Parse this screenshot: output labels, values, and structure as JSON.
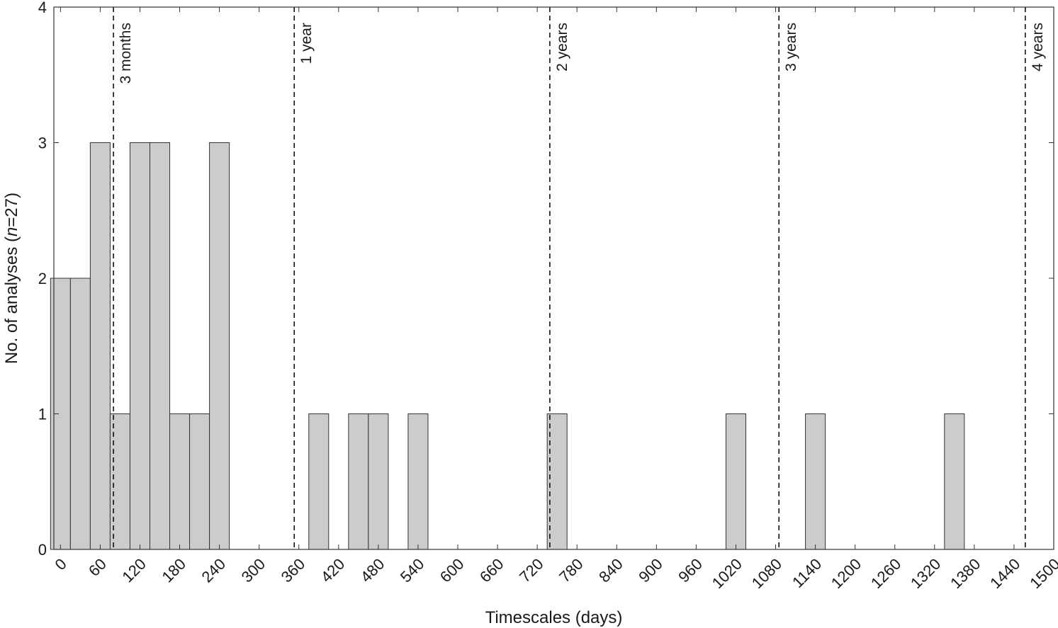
{
  "chart_data": {
    "type": "bar",
    "subtype": "histogram",
    "xlabel": "Timescales (days)",
    "ylabel": "No. of analyses (n=27)",
    "ylabel_parts": [
      "No. of analyses (",
      "n",
      "=27)"
    ],
    "xlim": [
      -10,
      1500
    ],
    "ylim": [
      0,
      4
    ],
    "grid": false,
    "bin_width": 30,
    "bar_color": "#cccccc",
    "edge_color": "#333333",
    "x_ticks": [
      0,
      60,
      120,
      180,
      240,
      300,
      360,
      420,
      480,
      540,
      600,
      660,
      720,
      780,
      840,
      900,
      960,
      1020,
      1080,
      1140,
      1200,
      1260,
      1320,
      1380,
      1440,
      1500
    ],
    "y_ticks": [
      0,
      1,
      2,
      3,
      4
    ],
    "bins": [
      {
        "center": 0,
        "count": 2
      },
      {
        "center": 30,
        "count": 2
      },
      {
        "center": 60,
        "count": 3
      },
      {
        "center": 90,
        "count": 1
      },
      {
        "center": 120,
        "count": 3
      },
      {
        "center": 150,
        "count": 3
      },
      {
        "center": 180,
        "count": 1
      },
      {
        "center": 210,
        "count": 1
      },
      {
        "center": 240,
        "count": 3
      },
      {
        "center": 390,
        "count": 1
      },
      {
        "center": 450,
        "count": 1
      },
      {
        "center": 480,
        "count": 1
      },
      {
        "center": 540,
        "count": 1
      },
      {
        "center": 750,
        "count": 1
      },
      {
        "center": 1020,
        "count": 1
      },
      {
        "center": 1140,
        "count": 1
      },
      {
        "center": 1350,
        "count": 1
      }
    ],
    "reference_lines": [
      {
        "x": 80,
        "label": "3 months"
      },
      {
        "x": 353,
        "label": "1 year"
      },
      {
        "x": 739,
        "label": "2 years"
      },
      {
        "x": 1085,
        "label": "3 years"
      },
      {
        "x": 1457,
        "label": "4 years"
      }
    ]
  }
}
